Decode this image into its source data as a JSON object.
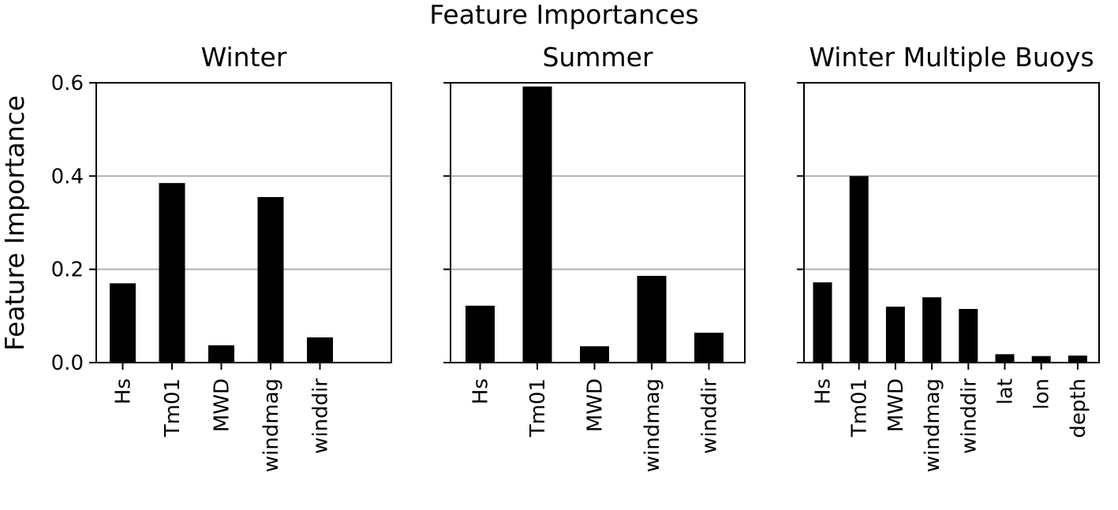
{
  "figure": {
    "suptitle": "Feature Importances",
    "ylabel": "Feature Importance"
  },
  "chart_data": [
    {
      "type": "bar",
      "title": "Winter",
      "categories": [
        "Hs",
        "Tm01",
        "MWD",
        "windmag",
        "winddir"
      ],
      "values": [
        0.17,
        0.385,
        0.037,
        0.355,
        0.054
      ],
      "ylabel": "Feature Importance",
      "ylim": [
        0,
        0.6
      ],
      "yticks": [
        "0.0",
        "0.2",
        "0.4",
        "0.6"
      ],
      "grid": "horizontal",
      "bar_color": "#000000"
    },
    {
      "type": "bar",
      "title": "Summer",
      "categories": [
        "Hs",
        "Tm01",
        "MWD",
        "windmag",
        "winddir"
      ],
      "values": [
        0.122,
        0.592,
        0.035,
        0.186,
        0.064
      ],
      "ylim": [
        0,
        0.6
      ],
      "grid": "horizontal",
      "bar_color": "#000000"
    },
    {
      "type": "bar",
      "title": "Winter Multiple Buoys",
      "categories": [
        "Hs",
        "Tm01",
        "MWD",
        "windmag",
        "winddir",
        "lat",
        "lon",
        "depth"
      ],
      "values": [
        0.172,
        0.4,
        0.12,
        0.14,
        0.115,
        0.018,
        0.014,
        0.015
      ],
      "ylim": [
        0,
        0.6
      ],
      "grid": "horizontal",
      "bar_color": "#000000"
    }
  ]
}
